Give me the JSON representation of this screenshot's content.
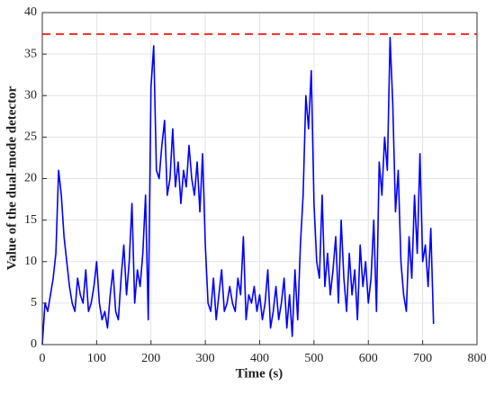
{
  "chart_data": {
    "type": "line",
    "x_label": "Time (s)",
    "y_label": "Value of the dual-mode detector",
    "x": [
      0,
      5,
      10,
      15,
      20,
      25,
      30,
      35,
      40,
      45,
      50,
      55,
      60,
      65,
      70,
      75,
      80,
      85,
      90,
      95,
      100,
      105,
      110,
      115,
      120,
      125,
      130,
      135,
      140,
      145,
      150,
      155,
      160,
      165,
      170,
      175,
      180,
      185,
      190,
      195,
      200,
      205,
      210,
      215,
      220,
      225,
      230,
      235,
      240,
      245,
      250,
      255,
      260,
      265,
      270,
      275,
      280,
      285,
      290,
      295,
      300,
      305,
      310,
      315,
      320,
      325,
      330,
      335,
      340,
      345,
      350,
      355,
      360,
      365,
      370,
      375,
      380,
      385,
      390,
      395,
      400,
      405,
      410,
      415,
      420,
      425,
      430,
      435,
      440,
      445,
      450,
      455,
      460,
      465,
      470,
      475,
      480,
      485,
      490,
      495,
      500,
      505,
      510,
      515,
      520,
      525,
      530,
      535,
      540,
      545,
      550,
      555,
      560,
      565,
      570,
      575,
      580,
      585,
      590,
      595,
      600,
      605,
      610,
      615,
      620,
      625,
      630,
      635,
      640,
      645,
      650,
      655,
      660,
      665,
      670,
      675,
      680,
      685,
      690,
      695,
      700,
      705,
      710,
      715,
      720
    ],
    "series": [
      {
        "color": "#0000ff",
        "values": [
          0,
          5,
          4,
          6,
          8,
          11,
          21,
          18,
          13,
          10,
          7,
          5,
          4,
          8,
          6,
          5,
          9,
          4,
          5,
          7,
          10,
          5,
          3,
          4,
          2,
          6,
          9,
          4,
          3,
          8,
          12,
          6,
          10,
          17,
          5,
          9,
          7,
          11,
          18,
          3,
          31,
          36,
          21,
          20,
          24,
          27,
          18,
          20,
          26,
          19,
          22,
          17,
          21,
          19,
          24,
          20,
          18,
          22,
          16,
          23,
          12,
          5,
          4,
          8,
          3,
          6,
          9,
          4,
          5,
          7,
          5,
          4,
          8,
          6,
          13,
          3,
          6,
          5,
          7,
          4,
          6,
          3,
          5,
          9,
          2,
          4,
          7,
          3,
          5,
          8,
          2,
          6,
          1,
          9,
          3,
          12,
          18,
          30,
          26,
          33,
          17,
          10,
          8,
          18,
          7,
          11,
          6,
          9,
          13,
          5,
          15,
          8,
          4,
          11,
          6,
          9,
          3,
          12,
          7,
          10,
          5,
          8,
          15,
          4,
          22,
          18,
          25,
          21,
          37,
          29,
          16,
          21,
          10,
          6,
          4,
          13,
          8,
          18,
          11,
          23,
          10,
          12,
          7,
          14,
          2.5
        ]
      }
    ],
    "hline": {
      "value": 37.4,
      "color": "#ff0000"
    },
    "xlim": [
      0,
      800
    ],
    "xticks": [
      0,
      100,
      200,
      300,
      400,
      500,
      600,
      700,
      800
    ],
    "ylim": [
      0,
      40
    ],
    "yticks": [
      0,
      5,
      10,
      15,
      20,
      25,
      30,
      35,
      40
    ],
    "grid": true
  }
}
